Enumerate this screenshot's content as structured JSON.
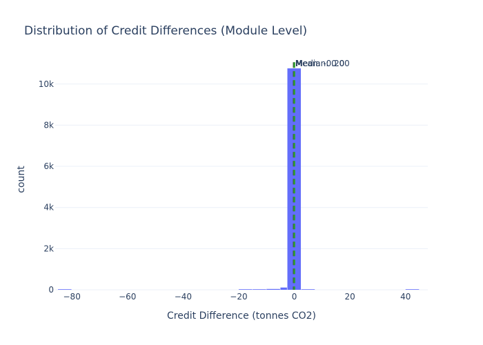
{
  "chart_data": {
    "type": "bar",
    "title": "Distribution of Credit Differences (Module Level)",
    "xlabel": "Credit Difference (tonnes CO2)",
    "ylabel": "count",
    "xlim": [
      -86,
      48
    ],
    "ylim": [
      0,
      11400
    ],
    "x_ticks": [
      {
        "value": -80,
        "label": "−80"
      },
      {
        "value": -60,
        "label": "−60"
      },
      {
        "value": -40,
        "label": "−40"
      },
      {
        "value": -20,
        "label": "−20"
      },
      {
        "value": 0,
        "label": "0"
      },
      {
        "value": 20,
        "label": "20"
      },
      {
        "value": 40,
        "label": "40"
      }
    ],
    "y_ticks": [
      {
        "value": 0,
        "label": "0"
      },
      {
        "value": 2000,
        "label": "2k"
      },
      {
        "value": 4000,
        "label": "4k"
      },
      {
        "value": 6000,
        "label": "6k"
      },
      {
        "value": 8000,
        "label": "8k"
      },
      {
        "value": 10000,
        "label": "10k"
      }
    ],
    "bins": [
      {
        "x0": -85,
        "x1": -80,
        "count": 1
      },
      {
        "x0": -20,
        "x1": -15,
        "count": 5
      },
      {
        "x0": -15,
        "x1": -10,
        "count": 20
      },
      {
        "x0": -10,
        "x1": -5,
        "count": 40
      },
      {
        "x0": -5,
        "x1": -2.5,
        "count": 110
      },
      {
        "x0": -2.5,
        "x1": 2.5,
        "count": 10760
      },
      {
        "x0": 2.5,
        "x1": 7.5,
        "count": 8
      },
      {
        "x0": 40,
        "x1": 45,
        "count": 1
      }
    ],
    "reference_lines": [
      {
        "name": "Mean",
        "value": -0.2,
        "label": "Mean: -0.20",
        "color": "#444444"
      },
      {
        "name": "Median",
        "value": 0.0,
        "label": "Median: 0.00",
        "color": "#2ca02c"
      }
    ],
    "bar_color": "#636efa",
    "grid": true,
    "legend": "none"
  }
}
